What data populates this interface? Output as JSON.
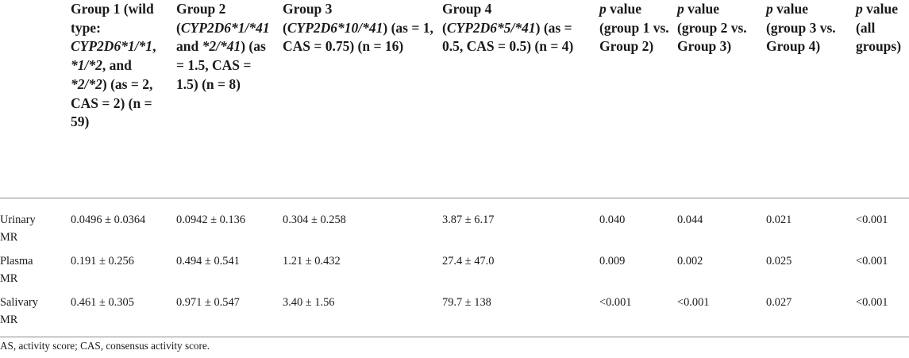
{
  "table": {
    "columns": [
      {
        "id": "col-blank",
        "parts": []
      },
      {
        "id": "col-group1",
        "parts": [
          {
            "t": "Group 1 (wild type: ",
            "i": false
          },
          {
            "t": "CYP2D6*1/*1",
            "i": true
          },
          {
            "t": ", ",
            "i": false
          },
          {
            "t": "*1/*2",
            "i": true
          },
          {
            "t": ", and ",
            "i": false
          },
          {
            "t": "*2/*2",
            "i": true
          },
          {
            "t": ") (as = 2, CAS = 2) (n = 59)",
            "i": false
          }
        ]
      },
      {
        "id": "col-group2",
        "parts": [
          {
            "t": "Group 2 (",
            "i": false
          },
          {
            "t": "CYP2D6*1/*41",
            "i": true
          },
          {
            "t": " and ",
            "i": false
          },
          {
            "t": "*2/*41",
            "i": true
          },
          {
            "t": ") (as = 1.5, CAS = 1.5) (n = 8)",
            "i": false
          }
        ]
      },
      {
        "id": "col-group3",
        "parts": [
          {
            "t": "Group 3 (",
            "i": false
          },
          {
            "t": "CYP2D6*10/*41",
            "i": true
          },
          {
            "t": ") (as = 1, CAS = 0.75) (n = 16)",
            "i": false
          }
        ]
      },
      {
        "id": "col-group4",
        "parts": [
          {
            "t": "Group 4 (",
            "i": false
          },
          {
            "t": "CYP2D6*5/*41",
            "i": true
          },
          {
            "t": ") (as = 0.5, CAS = 0.5) (n = 4)",
            "i": false
          }
        ]
      },
      {
        "id": "col-p12",
        "parts": [
          {
            "t": "p",
            "i": true
          },
          {
            "t": " value (group 1 vs. Group 2)",
            "i": false
          }
        ]
      },
      {
        "id": "col-p23",
        "parts": [
          {
            "t": "p",
            "i": true
          },
          {
            "t": " value (group 2 vs. Group 3)",
            "i": false
          }
        ]
      },
      {
        "id": "col-p34",
        "parts": [
          {
            "t": "p",
            "i": true
          },
          {
            "t": " value (group 3 vs. Group 4)",
            "i": false
          }
        ]
      },
      {
        "id": "col-pall",
        "parts": [
          {
            "t": "p",
            "i": true
          },
          {
            "t": " value (all groups)",
            "i": false
          }
        ]
      }
    ],
    "rows": [
      {
        "label": "Urinary MR",
        "values": [
          "0.0496 ± 0.0364",
          "0.0942 ± 0.136",
          "0.304 ± 0.258",
          "3.87 ± 6.17",
          "0.040",
          "0.044",
          "0.021",
          "<0.001"
        ]
      },
      {
        "label": "Plasma MR",
        "values": [
          "0.191 ± 0.256",
          "0.494 ± 0.541",
          "1.21 ± 0.432",
          "27.4 ± 47.0",
          "0.009",
          "0.002",
          "0.025",
          "<0.001"
        ]
      },
      {
        "label": "Salivary MR",
        "values": [
          "0.461 ± 0.305",
          "0.971 ± 0.547",
          "3.40 ± 1.56",
          "79.7 ± 138",
          "<0.001",
          "<0.001",
          "0.027",
          "<0.001"
        ]
      }
    ]
  },
  "footnote": "AS, activity score; CAS, consensus activity score."
}
